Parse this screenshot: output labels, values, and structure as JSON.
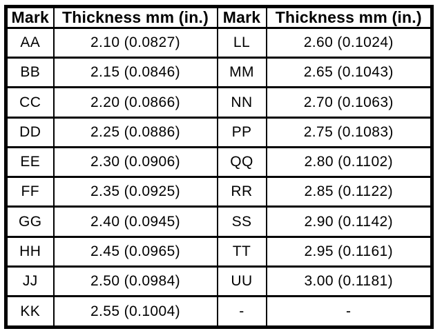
{
  "colors": {
    "border": "#000000",
    "background": "#ffffff",
    "text": "#000000"
  },
  "table": {
    "headers": [
      "Mark",
      "Thickness mm (in.)",
      "Mark",
      "Thickness mm (in.)"
    ],
    "rows": [
      [
        "AA",
        "2.10 (0.0827)",
        "LL",
        "2.60 (0.1024)"
      ],
      [
        "BB",
        "2.15 (0.0846)",
        "MM",
        "2.65 (0.1043)"
      ],
      [
        "CC",
        "2.20 (0.0866)",
        "NN",
        "2.70 (0.1063)"
      ],
      [
        "DD",
        "2.25 (0.0886)",
        "PP",
        "2.75 (0.1083)"
      ],
      [
        "EE",
        "2.30 (0.0906)",
        "QQ",
        "2.80 (0.1102)"
      ],
      [
        "FF",
        "2.35 (0.0925)",
        "RR",
        "2.85 (0.1122)"
      ],
      [
        "GG",
        "2.40 (0.0945)",
        "SS",
        "2.90 (0.1142)"
      ],
      [
        "HH",
        "2.45 (0.0965)",
        "TT",
        "2.95 (0.1161)"
      ],
      [
        "JJ",
        "2.50 (0.0984)",
        "UU",
        "3.00 (0.1181)"
      ],
      [
        "KK",
        "2.55 (0.1004)",
        "-",
        "-"
      ]
    ]
  }
}
